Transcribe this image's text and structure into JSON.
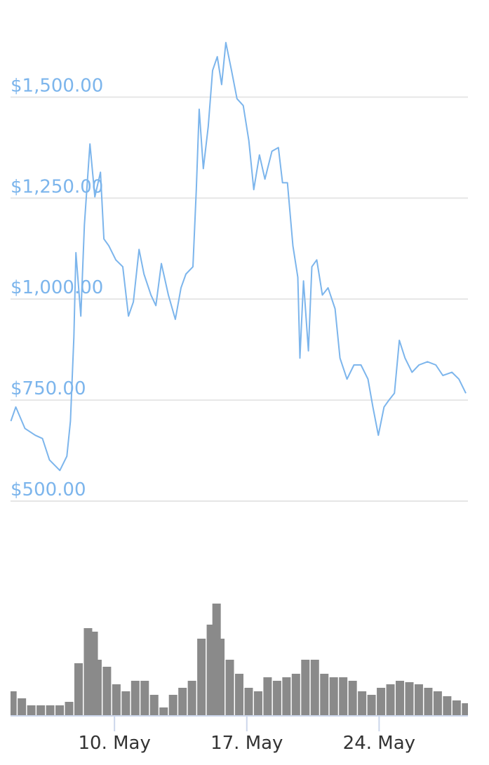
{
  "chart_data": [
    {
      "type": "line",
      "series": [
        {
          "color": "#7cb5ec",
          "x": [
            4.52,
            4.78,
            5.26,
            5.81,
            6.19,
            6.56,
            7.11,
            7.48,
            7.67,
            7.85,
            7.96,
            8.22,
            8.41,
            8.7,
            8.96,
            9.26,
            9.44,
            9.7,
            10.07,
            10.44,
            10.74,
            11.0,
            11.3,
            11.56,
            11.93,
            12.19,
            12.48,
            12.85,
            13.22,
            13.52,
            13.78,
            14.15,
            14.33,
            14.48,
            14.7,
            14.96,
            15.19,
            15.44,
            15.67,
            15.89,
            16.19,
            16.48,
            16.81,
            17.11,
            17.37,
            17.67,
            17.96,
            18.33,
            18.67,
            18.89,
            19.15,
            19.44,
            19.7,
            19.81,
            20.0,
            20.26,
            20.44,
            20.7,
            21.0,
            21.3,
            21.67,
            21.93,
            22.3,
            22.67,
            23.04,
            23.41,
            23.67,
            23.96,
            24.26,
            24.52,
            24.81,
            25.07,
            25.37,
            25.74,
            26.11,
            26.56,
            27.0,
            27.37,
            27.85,
            28.22,
            28.59
          ],
          "values": [
            698,
            733,
            680,
            663,
            655,
            602,
            576,
            611,
            698,
            906,
            1115,
            958,
            1184,
            1384,
            1253,
            1314,
            1149,
            1132,
            1097,
            1080,
            958,
            993,
            1123,
            1062,
            1010,
            984,
            1088,
            1010,
            950,
            1028,
            1062,
            1080,
            1271,
            1470,
            1323,
            1427,
            1566,
            1600,
            1531,
            1635,
            1566,
            1496,
            1479,
            1392,
            1271,
            1357,
            1297,
            1366,
            1375,
            1288,
            1288,
            1132,
            1054,
            854,
            1045,
            872,
            1080,
            1097,
            1010,
            1028,
            976,
            854,
            802,
            837,
            837,
            802,
            733,
            663,
            733,
            750,
            767,
            898,
            854,
            819,
            837,
            845,
            837,
            811,
            819,
            802,
            767
          ]
        }
      ],
      "xlim": [
        4.5,
        28.7
      ],
      "ylim": [
        500,
        1650
      ],
      "yticks": [
        {
          "value": 500,
          "label": "$500.00"
        },
        {
          "value": 750,
          "label": "$750.00"
        },
        {
          "value": 1000,
          "label": "$1,000.00"
        },
        {
          "value": 1250,
          "label": "$1,250.00"
        },
        {
          "value": 1500,
          "label": "$1,500.00"
        }
      ],
      "grid": true
    },
    {
      "type": "bar",
      "color": "#8a8a8a",
      "x": [
        4.6,
        5.1,
        5.6,
        6.1,
        6.6,
        7.1,
        7.6,
        8.1,
        8.6,
        8.9,
        9.1,
        9.6,
        10.1,
        10.6,
        11.1,
        11.6,
        12.1,
        12.6,
        13.1,
        13.6,
        14.1,
        14.6,
        15.1,
        15.4,
        15.6,
        16.1,
        16.6,
        17.1,
        17.6,
        18.1,
        18.6,
        19.1,
        19.6,
        20.1,
        20.6,
        21.1,
        21.6,
        22.1,
        22.6,
        23.1,
        23.6,
        24.1,
        24.6,
        25.1,
        25.6,
        26.1,
        26.6,
        27.1,
        27.6,
        28.1,
        28.6
      ],
      "values": [
        35,
        25,
        15,
        15,
        15,
        15,
        20,
        75,
        125,
        120,
        80,
        70,
        45,
        35,
        50,
        50,
        30,
        12,
        30,
        40,
        50,
        110,
        130,
        160,
        110,
        80,
        60,
        40,
        35,
        55,
        50,
        55,
        60,
        80,
        80,
        60,
        55,
        55,
        50,
        35,
        30,
        40,
        45,
        50,
        48,
        45,
        40,
        35,
        28,
        22,
        18
      ],
      "xlim": [
        4.5,
        28.7
      ],
      "ylim": [
        0,
        170
      ],
      "xticks": [
        {
          "value": 10,
          "label": "10. May"
        },
        {
          "value": 17,
          "label": "17. May"
        },
        {
          "value": 24,
          "label": "24. May"
        }
      ]
    }
  ]
}
